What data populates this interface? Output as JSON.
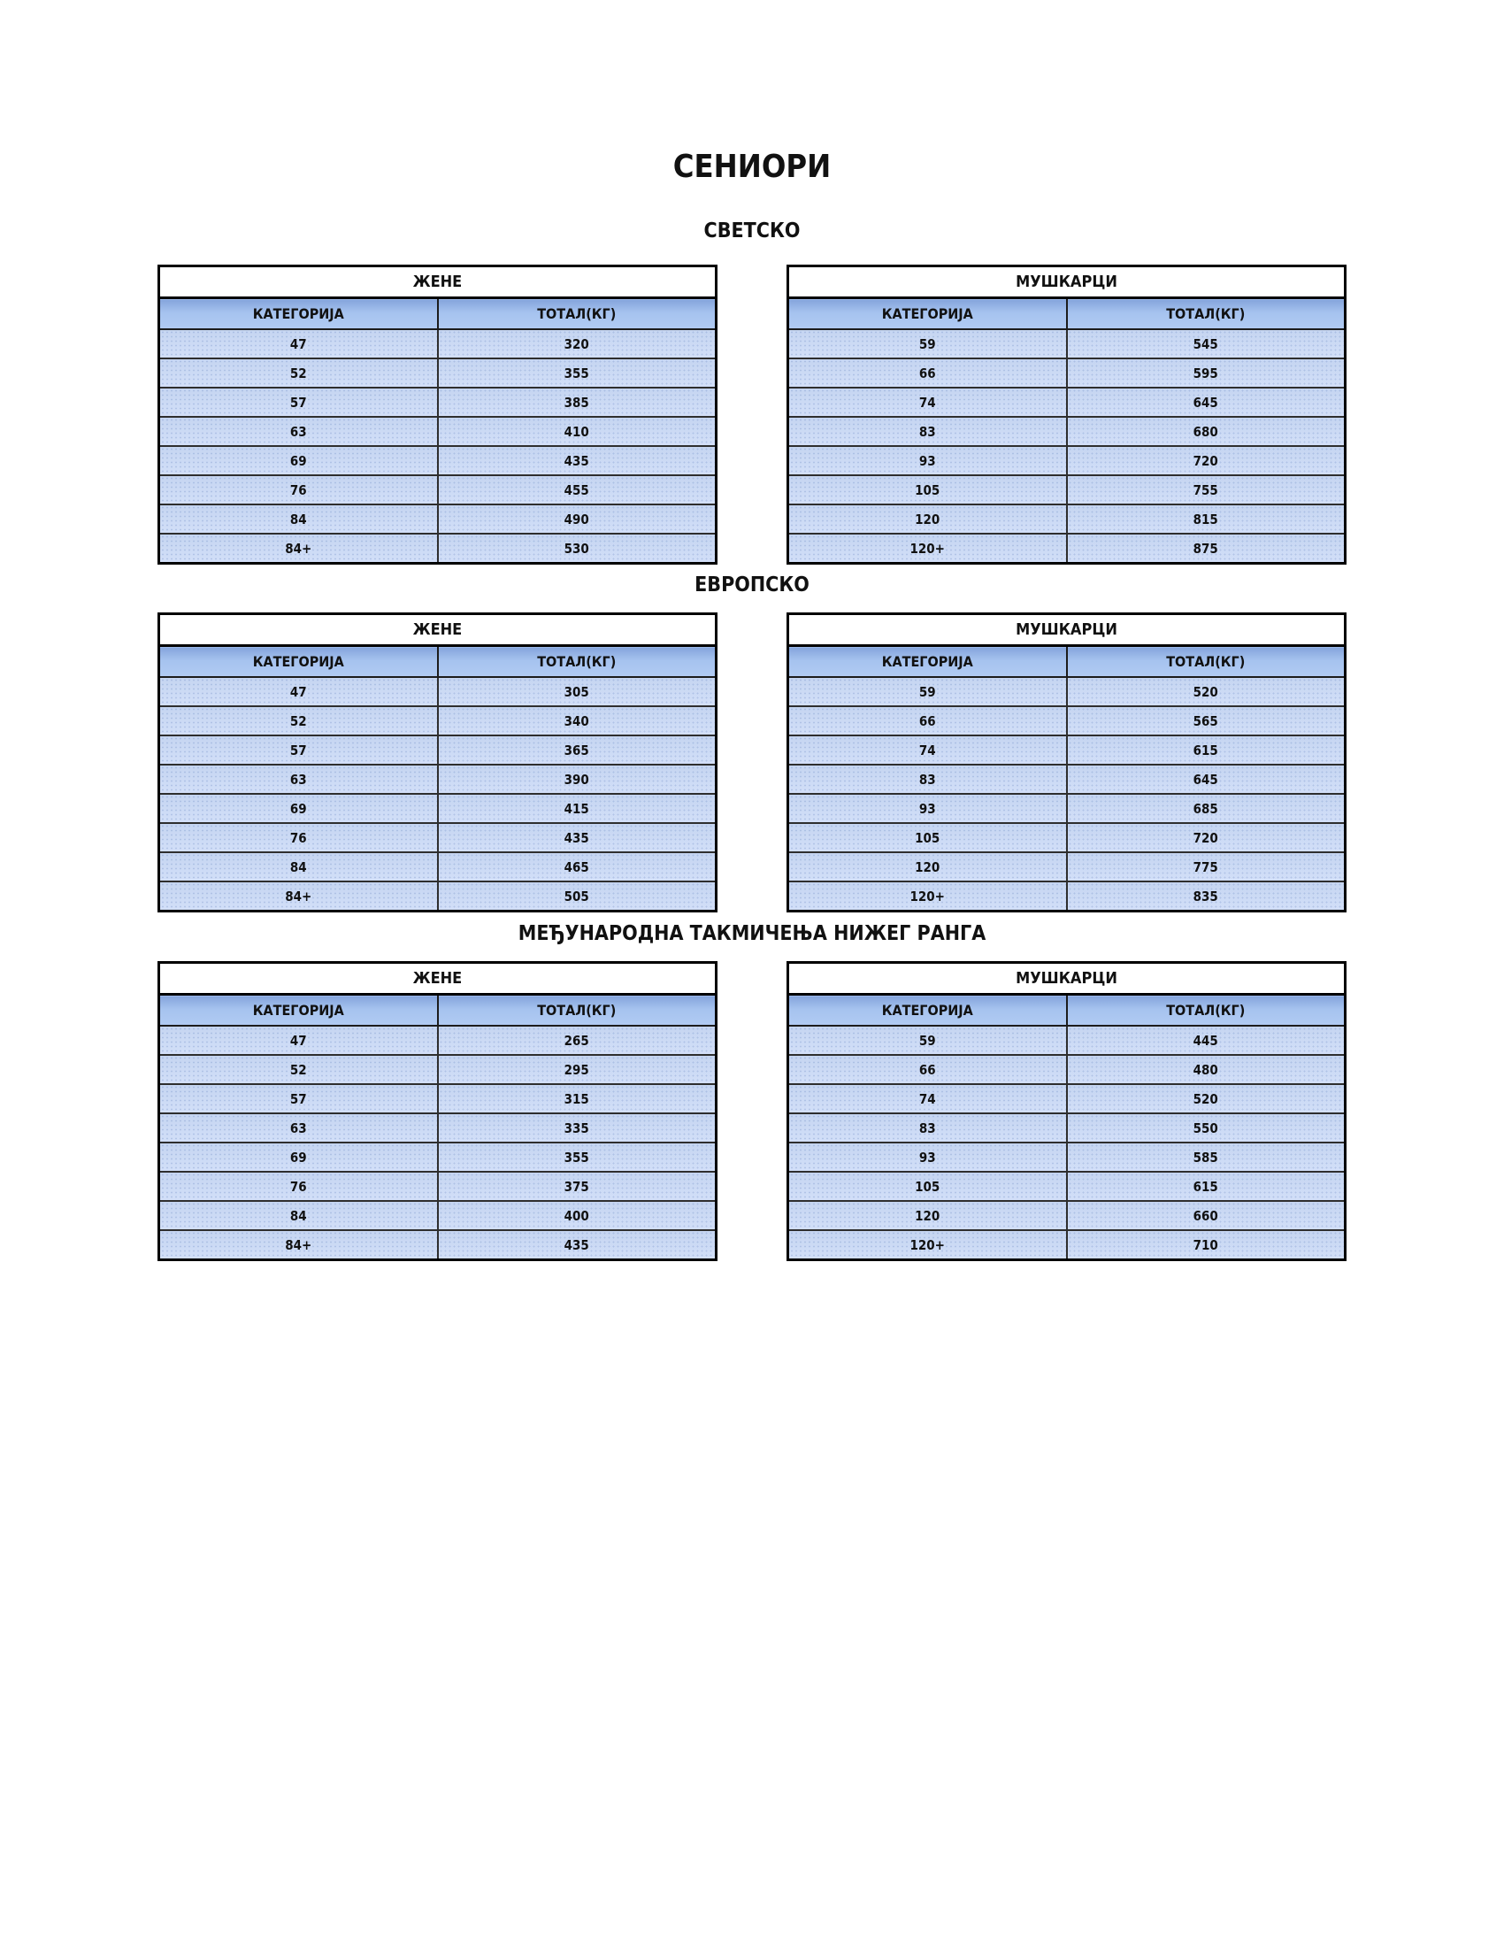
{
  "page": {
    "title": "СЕНИОРИ"
  },
  "colors": {
    "header_blue": "#a4c2f4",
    "row_blue": "#cfdef5",
    "border_black": "#000000",
    "background": "#ffffff"
  },
  "sections": [
    {
      "title": "СВЕТСКО",
      "tables": [
        {
          "group": "ЖЕНЕ",
          "headers": [
            "КАТЕГОРИЈА",
            "ТОТАЛ(КГ)"
          ],
          "rows": [
            [
              "47",
              "320"
            ],
            [
              "52",
              "355"
            ],
            [
              "57",
              "385"
            ],
            [
              "63",
              "410"
            ],
            [
              "69",
              "435"
            ],
            [
              "76",
              "455"
            ],
            [
              "84",
              "490"
            ],
            [
              "84+",
              "530"
            ]
          ]
        },
        {
          "group": "МУШКАРЦИ",
          "headers": [
            "КАТЕГОРИЈА",
            "ТОТАЛ(КГ)"
          ],
          "rows": [
            [
              "59",
              "545"
            ],
            [
              "66",
              "595"
            ],
            [
              "74",
              "645"
            ],
            [
              "83",
              "680"
            ],
            [
              "93",
              "720"
            ],
            [
              "105",
              "755"
            ],
            [
              "120",
              "815"
            ],
            [
              "120+",
              "875"
            ]
          ]
        }
      ]
    },
    {
      "title": "ЕВРОПСКО",
      "tables": [
        {
          "group": "ЖЕНЕ",
          "headers": [
            "КАТЕГОРИЈА",
            "ТОТАЛ(КГ)"
          ],
          "rows": [
            [
              "47",
              "305"
            ],
            [
              "52",
              "340"
            ],
            [
              "57",
              "365"
            ],
            [
              "63",
              "390"
            ],
            [
              "69",
              "415"
            ],
            [
              "76",
              "435"
            ],
            [
              "84",
              "465"
            ],
            [
              "84+",
              "505"
            ]
          ]
        },
        {
          "group": "МУШКАРЦИ",
          "headers": [
            "КАТЕГОРИЈА",
            "ТОТАЛ(КГ)"
          ],
          "rows": [
            [
              "59",
              "520"
            ],
            [
              "66",
              "565"
            ],
            [
              "74",
              "615"
            ],
            [
              "83",
              "645"
            ],
            [
              "93",
              "685"
            ],
            [
              "105",
              "720"
            ],
            [
              "120",
              "775"
            ],
            [
              "120+",
              "835"
            ]
          ]
        }
      ]
    },
    {
      "title": "МЕЂУНАРОДНА ТАКМИЧЕЊА НИЖЕГ РАНГА",
      "tables": [
        {
          "group": "ЖЕНЕ",
          "headers": [
            "КАТЕГОРИЈА",
            "ТОТАЛ(КГ)"
          ],
          "rows": [
            [
              "47",
              "265"
            ],
            [
              "52",
              "295"
            ],
            [
              "57",
              "315"
            ],
            [
              "63",
              "335"
            ],
            [
              "69",
              "355"
            ],
            [
              "76",
              "375"
            ],
            [
              "84",
              "400"
            ],
            [
              "84+",
              "435"
            ]
          ]
        },
        {
          "group": "МУШКАРЦИ",
          "headers": [
            "КАТЕГОРИЈА",
            "ТОТАЛ(КГ)"
          ],
          "rows": [
            [
              "59",
              "445"
            ],
            [
              "66",
              "480"
            ],
            [
              "74",
              "520"
            ],
            [
              "83",
              "550"
            ],
            [
              "93",
              "585"
            ],
            [
              "105",
              "615"
            ],
            [
              "120",
              "660"
            ],
            [
              "120+",
              "710"
            ]
          ]
        }
      ]
    }
  ]
}
